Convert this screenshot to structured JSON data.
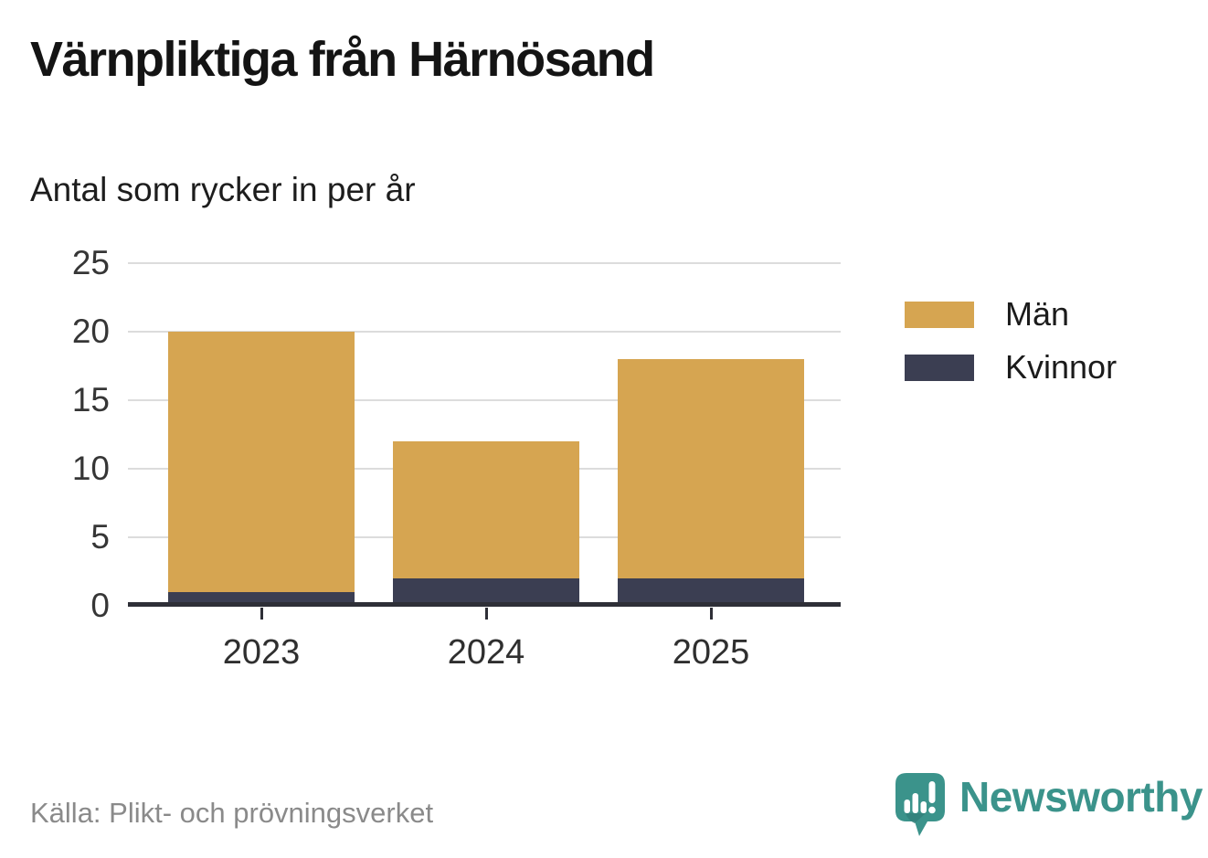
{
  "title": "Värnpliktiga från Härnösand",
  "subtitle": "Antal som rycker in per år",
  "source": "Källa: Plikt- och prövningsverket",
  "branding": {
    "name": "Newsworthy",
    "logo_icon": "newsworthy-speech-bubble-bar-chart-icon",
    "brand_color": "#3b938b"
  },
  "colors": {
    "men_bar": "#d6a551",
    "women_bar": "#3b3e52",
    "axis": "#2e2f37",
    "gridline": "#dcdcdc",
    "tick_text": "#363636",
    "source_text": "#8a8a8a"
  },
  "chart_data": {
    "type": "bar",
    "stacked": true,
    "title": "Värnpliktiga från Härnösand",
    "subtitle": "Antal som rycker in per år",
    "categories": [
      "2023",
      "2024",
      "2025"
    ],
    "series": [
      {
        "name": "Kvinnor",
        "color": "#3b3e52",
        "values": [
          1,
          2,
          2
        ]
      },
      {
        "name": "Män",
        "color": "#d6a551",
        "values": [
          19,
          10,
          16
        ]
      }
    ],
    "totals": [
      20,
      12,
      18
    ],
    "xlabel": "",
    "ylabel": "",
    "ylim": [
      0,
      25
    ],
    "yticks": [
      0,
      5,
      10,
      15,
      20,
      25
    ],
    "grid": "horizontal",
    "legend_position": "right",
    "legend_items": [
      {
        "label": "Män",
        "color": "#d6a551"
      },
      {
        "label": "Kvinnor",
        "color": "#3b3e52"
      }
    ]
  }
}
